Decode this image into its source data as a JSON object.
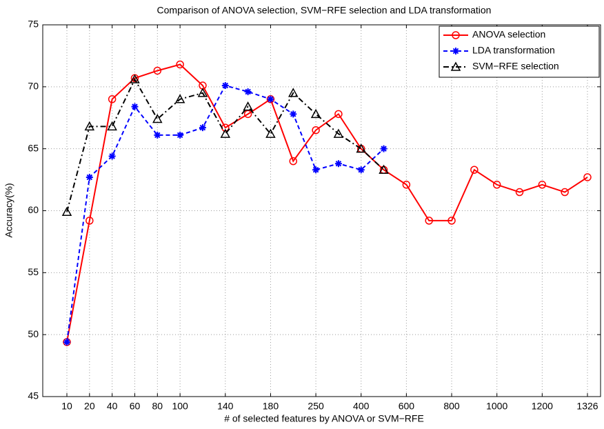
{
  "chart_data": {
    "type": "line",
    "title": "Comparison of ANOVA selection, SVM−RFE selection and LDA transformation",
    "x_label": "# of selected features by ANOVA or SVM−RFE",
    "y_label": "Accuracy(%)",
    "categories": [
      "10",
      "20",
      "40",
      "60",
      "80",
      "100",
      null,
      "140",
      null,
      "180",
      null,
      "250",
      null,
      "400",
      null,
      "600",
      null,
      "800",
      null,
      "1000",
      null,
      "1200",
      null,
      "1326"
    ],
    "series": [
      {
        "name": "ANOVA selection",
        "color": "#ff0000",
        "marker": "circle",
        "dash": "solid",
        "values": [
          49.4,
          59.2,
          69.0,
          70.7,
          71.3,
          71.8,
          70.1,
          66.7,
          67.8,
          69.0,
          64.0,
          66.5,
          67.8,
          65.0,
          63.3,
          62.1,
          59.2,
          59.2,
          63.3,
          62.1,
          61.5,
          62.1,
          61.5,
          62.7
        ]
      },
      {
        "name": "LDA transformation",
        "color": "#0000ff",
        "marker": "star",
        "dash": "dashed",
        "values": [
          49.4,
          62.7,
          64.4,
          68.4,
          66.1,
          66.1,
          66.7,
          70.1,
          69.6,
          69.0,
          67.8,
          63.3,
          63.8,
          63.3,
          65.0,
          null,
          null,
          null,
          null,
          null,
          null,
          null,
          null,
          null
        ]
      },
      {
        "name": "SVM−RFE selection",
        "color": "#000000",
        "marker": "triangle",
        "dash": "dashdot",
        "values": [
          59.9,
          66.8,
          66.8,
          70.6,
          67.4,
          69.0,
          69.5,
          66.2,
          68.4,
          66.2,
          69.5,
          67.8,
          66.2,
          65.0,
          63.3,
          null,
          null,
          null,
          null,
          null,
          null,
          null,
          null,
          null
        ]
      }
    ],
    "ylim": [
      45,
      75
    ],
    "yticks": [
      45,
      50,
      55,
      60,
      65,
      70,
      75
    ],
    "grid": true,
    "legend": "top-right"
  }
}
